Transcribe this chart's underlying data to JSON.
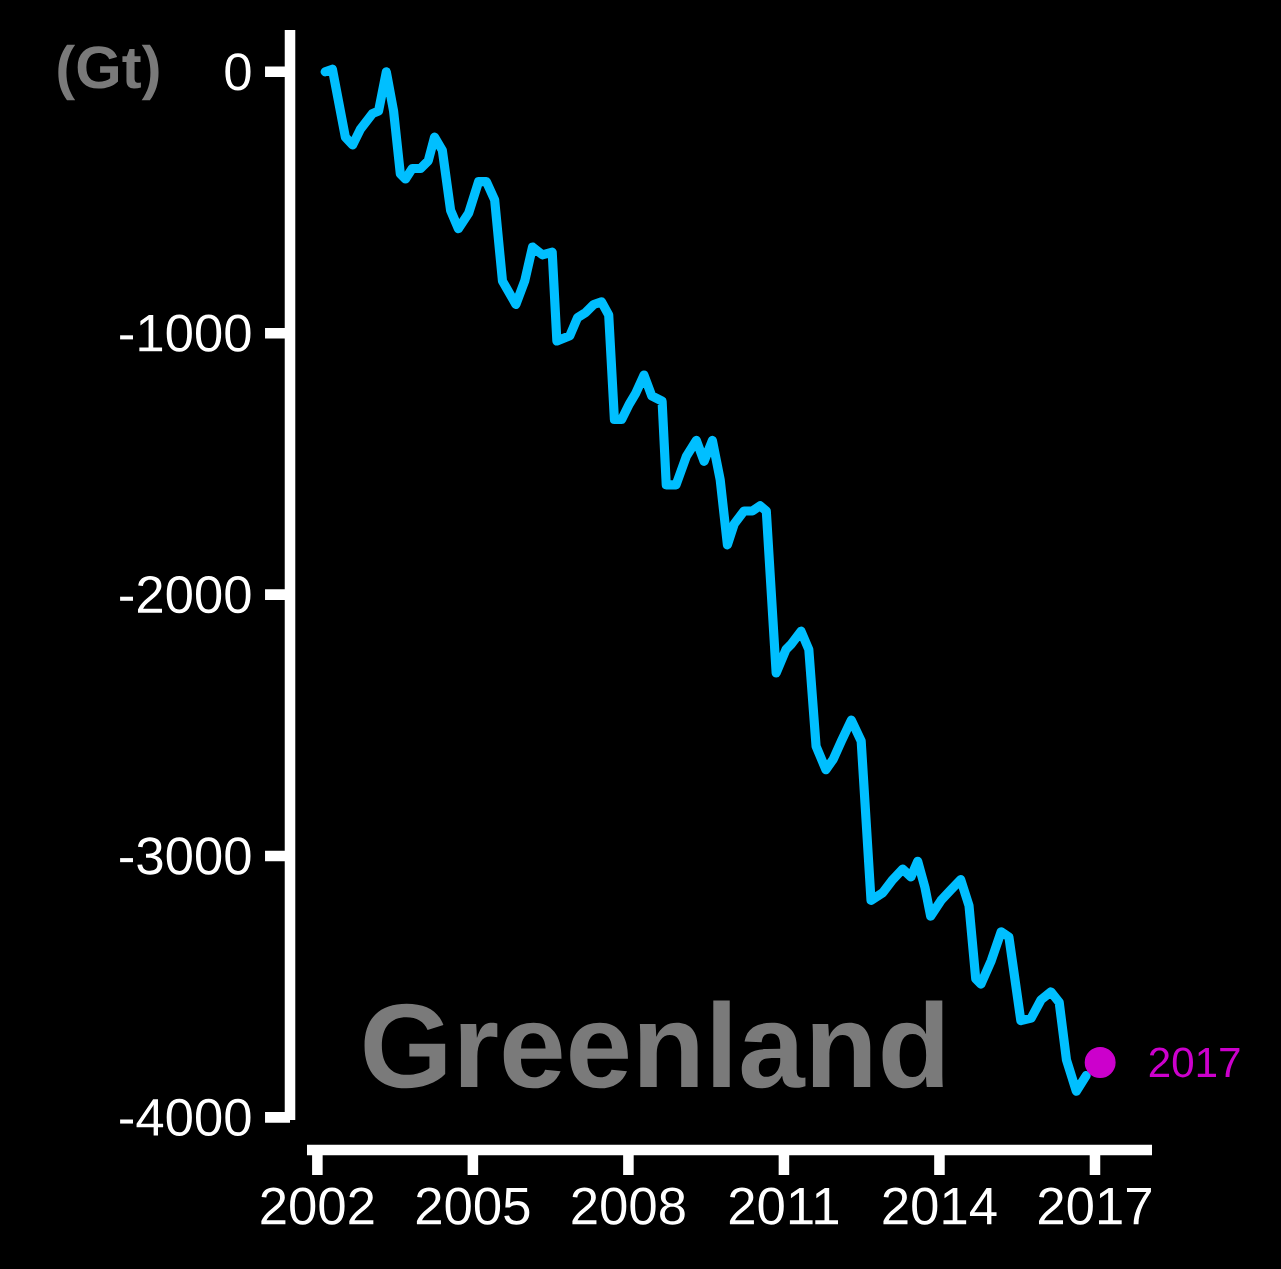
{
  "chart_data": {
    "type": "line",
    "title": "Greenland",
    "ylabel": "(Gt)",
    "xlim": [
      2001.8,
      2018.1
    ],
    "ylim": [
      -4010,
      160
    ],
    "xticks": [
      2002,
      2005,
      2008,
      2011,
      2014,
      2017
    ],
    "yticks": [
      0,
      -1000,
      -2000,
      -3000,
      -4000
    ],
    "grid": false,
    "legend": "right",
    "series": [
      {
        "color": "#00bfff",
        "marker": "none",
        "x": [
          2002.15,
          2002.29,
          2002.54,
          2002.68,
          2002.83,
          2003.06,
          2003.18,
          2003.33,
          2003.47,
          2003.6,
          2003.7,
          2003.83,
          2003.99,
          2004.14,
          2004.26,
          2004.41,
          2004.57,
          2004.72,
          2004.92,
          2005.11,
          2005.26,
          2005.42,
          2005.57,
          2005.83,
          2006.0,
          2006.15,
          2006.34,
          2006.53,
          2006.62,
          2006.87,
          2007.02,
          2007.18,
          2007.33,
          2007.48,
          2007.62,
          2007.73,
          2007.87,
          2008.02,
          2008.14,
          2008.3,
          2008.45,
          2008.65,
          2008.73,
          2008.92,
          2009.12,
          2009.31,
          2009.46,
          2009.62,
          2009.77,
          2009.91,
          2010.04,
          2010.23,
          2010.39,
          2010.54,
          2010.66,
          2010.85,
          2011.04,
          2011.14,
          2011.33,
          2011.48,
          2011.62,
          2011.81,
          2011.95,
          2012.11,
          2012.3,
          2012.49,
          2012.68,
          2012.91,
          2013.1,
          2013.29,
          2013.45,
          2013.58,
          2013.72,
          2013.83,
          2014.03,
          2014.22,
          2014.41,
          2014.57,
          2014.7,
          2014.8,
          2015.0,
          2015.19,
          2015.34,
          2015.57,
          2015.77,
          2015.96,
          2016.15,
          2016.31,
          2016.45,
          2016.64,
          2016.83
        ],
        "values": [
          0,
          10,
          -250,
          -280,
          -220,
          -160,
          -150,
          0,
          -150,
          -390,
          -410,
          -370,
          -370,
          -340,
          -250,
          -300,
          -530,
          -600,
          -540,
          -420,
          -420,
          -490,
          -800,
          -890,
          -800,
          -670,
          -700,
          -690,
          -1030,
          -1010,
          -940,
          -920,
          -890,
          -880,
          -930,
          -1330,
          -1330,
          -1270,
          -1230,
          -1160,
          -1240,
          -1260,
          -1580,
          -1580,
          -1470,
          -1410,
          -1490,
          -1410,
          -1560,
          -1810,
          -1730,
          -1680,
          -1680,
          -1660,
          -1680,
          -2300,
          -2210,
          -2190,
          -2140,
          -2210,
          -2580,
          -2670,
          -2630,
          -2560,
          -2480,
          -2560,
          -3170,
          -3140,
          -3090,
          -3050,
          -3080,
          -3020,
          -3120,
          -3230,
          -3170,
          -3130,
          -3090,
          -3190,
          -3470,
          -3490,
          -3400,
          -3290,
          -3310,
          -3630,
          -3620,
          -3550,
          -3520,
          -3560,
          -3780,
          -3900,
          -3840
        ]
      },
      {
        "type": "scatter",
        "name": "2017",
        "color": "#cc00cc",
        "marker": "circle",
        "x": [
          2017.1
        ],
        "values": [
          -3790
        ]
      }
    ]
  }
}
